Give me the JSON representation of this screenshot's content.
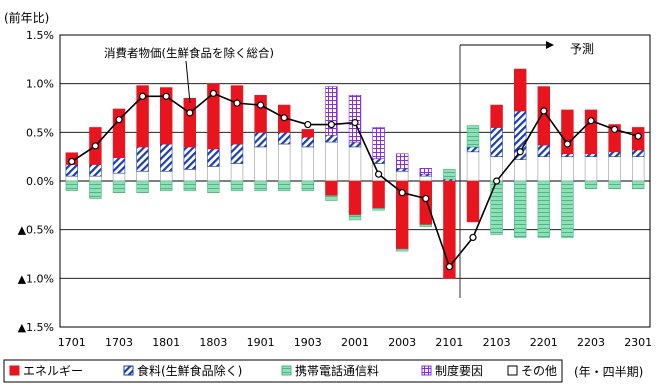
{
  "chart_data": {
    "type": "bar",
    "unit_label": "(前年比)",
    "note_label": "(年・四半期)",
    "line_label": "消費者物価(生鮮食品を除く総合)",
    "forecast_label": "予測",
    "forecast_start": "2102",
    "ylim": [
      -1.5,
      1.5
    ],
    "y_ticks": [
      1.5,
      1.0,
      0.5,
      0.0,
      -0.5,
      -1.0,
      -1.5
    ],
    "y_tick_labels": [
      "1.5%",
      "1.0%",
      "0.5%",
      "0.0%",
      "▲0.5%",
      "▲1.0%",
      "▲1.5%"
    ],
    "categories": [
      "1701",
      "1702",
      "1703",
      "1704",
      "1801",
      "1802",
      "1803",
      "1804",
      "1901",
      "1902",
      "1903",
      "1904",
      "2001",
      "2002",
      "2003",
      "2004",
      "2101",
      "2102",
      "2103",
      "2104",
      "2201",
      "2202",
      "2203",
      "2204",
      "2301"
    ],
    "x_tick_labels": [
      "1701",
      "1703",
      "1801",
      "1803",
      "1901",
      "1903",
      "2001",
      "2003",
      "2101",
      "2103",
      "2201",
      "2203",
      "2301"
    ],
    "series": [
      {
        "name": "その他",
        "key": "other",
        "color": "#ffffff",
        "values": [
          0.05,
          0.05,
          0.08,
          0.1,
          0.1,
          0.12,
          0.15,
          0.18,
          0.35,
          0.38,
          0.35,
          0.4,
          0.35,
          0.18,
          0.1,
          0.05,
          0.0,
          0.3,
          0.25,
          0.22,
          0.25,
          0.25,
          0.25,
          0.25,
          0.25
        ]
      },
      {
        "name": "食料(生鮮食品除く)",
        "key": "food",
        "color": "#1a3faa",
        "values": [
          0.12,
          0.12,
          0.16,
          0.25,
          0.28,
          0.23,
          0.18,
          0.2,
          0.15,
          0.12,
          0.1,
          0.07,
          0.05,
          0.05,
          0.03,
          0.02,
          0.02,
          0.05,
          0.3,
          0.5,
          0.12,
          0.03,
          0.03,
          0.05,
          0.07
        ]
      },
      {
        "name": "制度要因",
        "key": "policy",
        "color": "#8a2be2",
        "values": [
          0.0,
          0.0,
          0.0,
          0.0,
          0.0,
          0.0,
          0.0,
          0.0,
          0.0,
          0.0,
          0.0,
          0.5,
          0.48,
          0.32,
          0.15,
          0.06,
          0.0,
          0.0,
          0.0,
          0.0,
          0.0,
          0.0,
          0.0,
          0.0,
          0.0
        ]
      },
      {
        "name": "エネルギー",
        "key": "energy",
        "color": "#e8141e",
        "values": [
          0.12,
          0.38,
          0.5,
          0.63,
          0.58,
          0.5,
          0.67,
          0.6,
          0.38,
          0.28,
          0.08,
          -0.15,
          -0.35,
          -0.28,
          -0.7,
          -0.45,
          -1.0,
          -0.42,
          0.23,
          0.43,
          0.6,
          0.45,
          0.45,
          0.28,
          0.23
        ]
      },
      {
        "name": "携帯電話通信料",
        "key": "mobile",
        "color": "#7fd6a8",
        "values": [
          -0.1,
          -0.18,
          -0.12,
          -0.12,
          -0.1,
          -0.1,
          -0.12,
          -0.1,
          -0.1,
          -0.1,
          -0.1,
          -0.05,
          -0.05,
          -0.02,
          -0.02,
          -0.02,
          0.1,
          0.22,
          -0.55,
          -0.58,
          -0.58,
          -0.58,
          -0.08,
          -0.08,
          -0.08
        ]
      }
    ],
    "line": {
      "name": "消費者物価(生鮮食品を除く総合)",
      "values": [
        0.2,
        0.36,
        0.63,
        0.87,
        0.87,
        0.7,
        0.9,
        0.8,
        0.78,
        0.65,
        0.58,
        0.58,
        0.6,
        0.07,
        -0.12,
        -0.18,
        -0.88,
        -0.58,
        0.0,
        0.3,
        0.72,
        0.38,
        0.62,
        0.53,
        0.46
      ]
    },
    "legend": [
      {
        "key": "energy",
        "label": "エネルギー"
      },
      {
        "key": "food",
        "label": "食料(生鮮食品除く)"
      },
      {
        "key": "mobile",
        "label": "携帯電話通信料"
      },
      {
        "key": "policy",
        "label": "制度要因"
      },
      {
        "key": "other",
        "label": "その他"
      }
    ],
    "grid": true
  }
}
